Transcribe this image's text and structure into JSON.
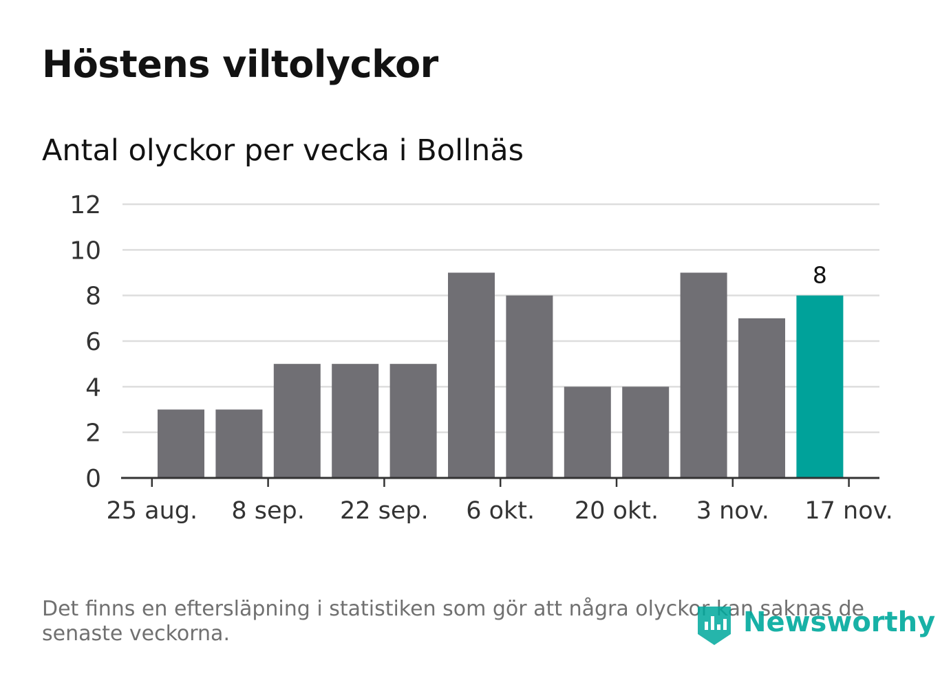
{
  "title": "Höstens viltolyckor",
  "subtitle": "Antal olyckor per vecka i Bollnäs",
  "footnote": "Det finns en eftersläpning i statistiken som gör att några olyckor kan saknas de senaste veckorna.",
  "brand": {
    "name": "Newsworthy",
    "color": "#00a99d"
  },
  "colors": {
    "bar": "#706f74",
    "highlight": "#00a29a",
    "grid": "#dddddd",
    "axis": "#333333",
    "text": "#333333"
  },
  "chart_data": {
    "type": "bar",
    "title": "Antal olyckor per vecka i Bollnäs",
    "xlabel": "",
    "ylabel": "",
    "ylim": [
      0,
      12
    ],
    "yticks": [
      "0",
      "2",
      "4",
      "6",
      "8",
      "10",
      "12"
    ],
    "xticks": [
      {
        "label": "25 aug.",
        "pos": -0.5
      },
      {
        "label": "8 sep.",
        "pos": 1.5
      },
      {
        "label": "22 sep.",
        "pos": 3.5
      },
      {
        "label": "6 okt.",
        "pos": 5.5
      },
      {
        "label": "20 okt.",
        "pos": 7.5
      },
      {
        "label": "3 nov.",
        "pos": 9.5
      },
      {
        "label": "17 nov.",
        "pos": 11.5
      }
    ],
    "values": [
      3,
      3,
      5,
      5,
      5,
      9,
      8,
      4,
      4,
      9,
      7,
      8
    ],
    "highlight_index": 11,
    "data_labels": [
      {
        "index": 11,
        "text": "8"
      }
    ],
    "grid": true
  }
}
